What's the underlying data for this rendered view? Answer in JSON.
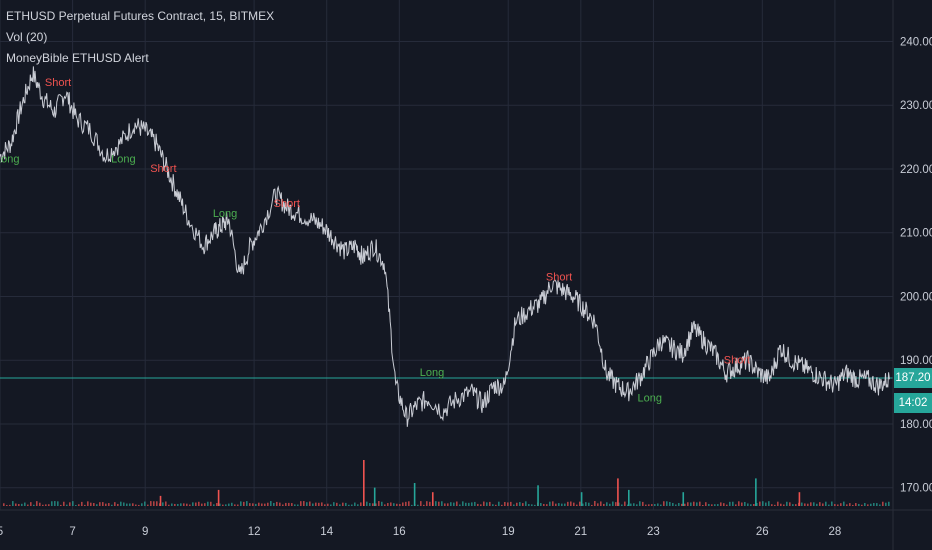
{
  "header": {
    "symbol_line": "ETHUSD Perpetual Futures Contract, 15, BITMEX",
    "volume_line": "Vol (20)",
    "indicator_line": "MoneyBible ETHUSD Alert"
  },
  "price_tags": {
    "last_price": "187.20",
    "countdown": "14:02"
  },
  "colors": {
    "background": "#141823",
    "grid": "#262b3a",
    "price_line": "#c9ccd4",
    "last_price_line": "#26a69a",
    "long_signal": "#4caf50",
    "short_signal": "#ef5350",
    "volume_up": "#26a69a",
    "volume_down": "#ef5350"
  },
  "chart_data": {
    "type": "line",
    "y_ticks": [
      "240.00",
      "230.00",
      "220.00",
      "210.00",
      "200.00",
      "190.00",
      "180.00",
      "170.00"
    ],
    "y_tick_values": [
      240,
      230,
      220,
      210,
      200,
      190,
      180,
      170
    ],
    "x_ticks": [
      "5",
      "7",
      "9",
      "12",
      "14",
      "16",
      "19",
      "21",
      "23",
      "26",
      "28"
    ],
    "x_tick_days": [
      5,
      7,
      9,
      12,
      14,
      16,
      19,
      21,
      23,
      26,
      28
    ],
    "x_range": [
      5,
      29.6
    ],
    "ylim": [
      166.5,
      246.5
    ],
    "grid": true,
    "last_price": 187.2,
    "series": [
      {
        "x": [
          5.0,
          5.3,
          5.6,
          5.9,
          6.2,
          6.5,
          6.8,
          7.1,
          7.5,
          7.9,
          8.3,
          8.7,
          9.0,
          9.3,
          9.6,
          9.9,
          10.2,
          10.6,
          10.9,
          11.1,
          11.3,
          11.6,
          11.9,
          12.2,
          12.6,
          12.9,
          13.2,
          13.6,
          13.9,
          14.2,
          14.5,
          14.8,
          15.0,
          15.3,
          15.6,
          15.9,
          16.2,
          16.5,
          16.8,
          17.2,
          17.6,
          18.0,
          18.3,
          18.6,
          18.9,
          19.2,
          19.6,
          19.9,
          20.2,
          20.5,
          20.8,
          21.1,
          21.4,
          21.7,
          22.0,
          22.3,
          22.6,
          22.9,
          23.2,
          23.5,
          23.8,
          24.1,
          24.4,
          24.7,
          25.0,
          25.3,
          25.6,
          25.9,
          26.2,
          26.5,
          26.8,
          27.1,
          27.4,
          27.7,
          28.0,
          28.3,
          28.6,
          28.9,
          29.2,
          29.5
        ],
        "y": [
          222,
          224,
          230,
          235,
          231,
          229,
          232,
          228,
          226,
          222,
          224,
          227,
          226,
          224,
          220,
          216,
          212,
          208,
          210,
          211,
          212,
          203,
          208,
          211,
          216,
          214,
          213,
          212,
          211,
          209,
          207,
          208,
          206,
          208,
          205,
          186,
          181,
          183,
          184,
          182,
          184,
          185,
          183,
          186,
          186,
          196,
          198,
          199,
          202,
          201,
          200,
          198,
          196,
          188,
          186,
          185,
          187,
          190,
          193,
          192,
          191,
          195,
          193,
          191,
          188,
          189,
          190,
          188,
          187,
          192,
          190,
          189,
          188,
          187,
          186,
          188,
          187,
          187,
          186,
          187
        ]
      }
    ],
    "signals": [
      {
        "label": "Long",
        "x": 5.2,
        "y": 221,
        "kind": "long"
      },
      {
        "label": "Short",
        "x": 6.6,
        "y": 233,
        "kind": "short"
      },
      {
        "label": "Long",
        "x": 8.4,
        "y": 221,
        "kind": "long"
      },
      {
        "label": "Short",
        "x": 9.5,
        "y": 219.5,
        "kind": "short"
      },
      {
        "label": "Long",
        "x": 11.2,
        "y": 212.5,
        "kind": "long"
      },
      {
        "label": "Short",
        "x": 12.9,
        "y": 214,
        "kind": "short"
      },
      {
        "label": "Long",
        "x": 16.9,
        "y": 187.5,
        "kind": "long"
      },
      {
        "label": "Short",
        "x": 20.4,
        "y": 202.5,
        "kind": "short"
      },
      {
        "label": "Long",
        "x": 22.9,
        "y": 183.5,
        "kind": "long"
      },
      {
        "label": "Short",
        "x": 25.3,
        "y": 189.5,
        "kind": "short"
      }
    ],
    "volume_spikes": [
      {
        "x": 9.4,
        "v": 0.22,
        "kind": "down"
      },
      {
        "x": 11.0,
        "v": 0.35,
        "kind": "down"
      },
      {
        "x": 15.0,
        "v": 1.0,
        "kind": "down"
      },
      {
        "x": 15.3,
        "v": 0.4,
        "kind": "up"
      },
      {
        "x": 16.4,
        "v": 0.5,
        "kind": "up"
      },
      {
        "x": 16.9,
        "v": 0.3,
        "kind": "down"
      },
      {
        "x": 19.8,
        "v": 0.45,
        "kind": "up"
      },
      {
        "x": 21.0,
        "v": 0.3,
        "kind": "up"
      },
      {
        "x": 22.0,
        "v": 0.6,
        "kind": "down"
      },
      {
        "x": 22.3,
        "v": 0.35,
        "kind": "up"
      },
      {
        "x": 23.8,
        "v": 0.3,
        "kind": "up"
      },
      {
        "x": 25.8,
        "v": 0.6,
        "kind": "up"
      },
      {
        "x": 27.0,
        "v": 0.3,
        "kind": "down"
      }
    ]
  }
}
